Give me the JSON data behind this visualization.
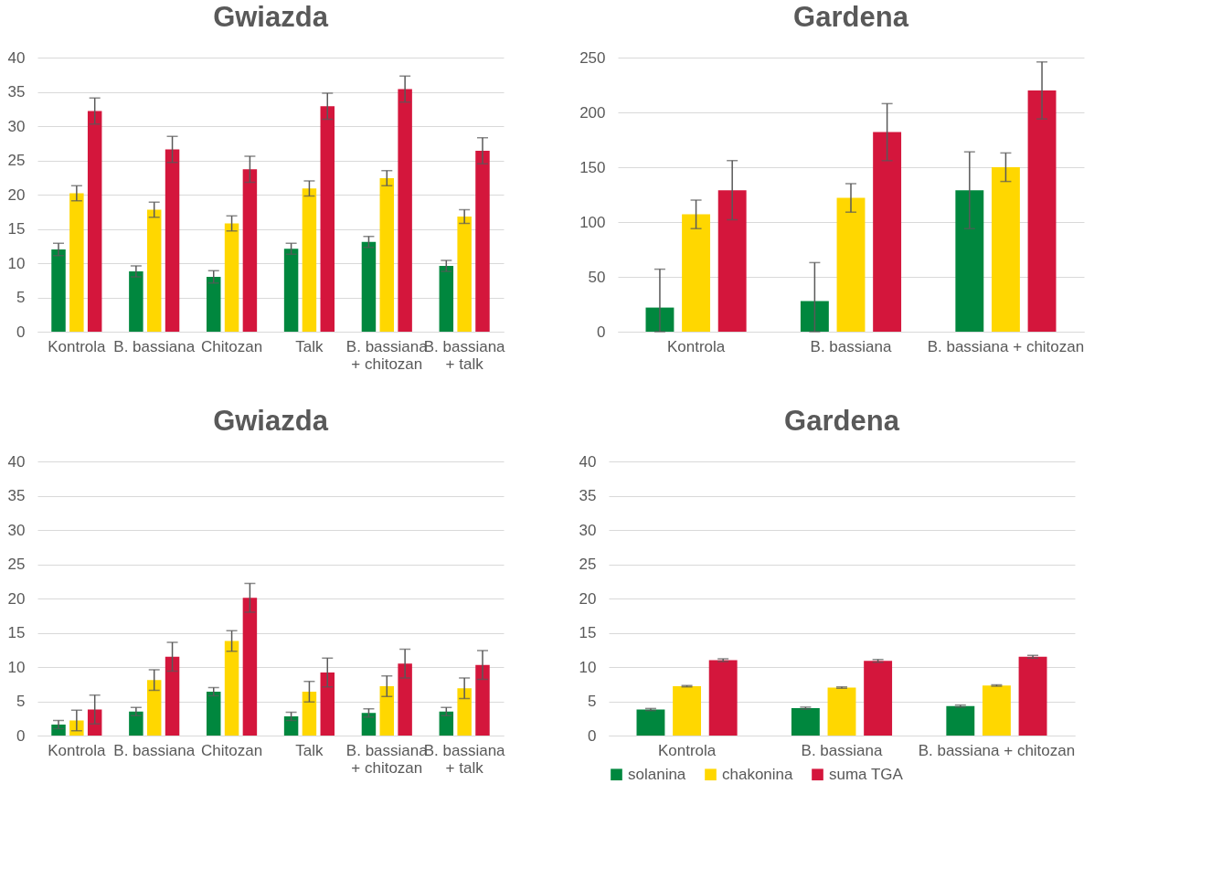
{
  "chart_data": [
    {
      "type": "bar",
      "title": "Gwiazda",
      "categories": [
        "Kontrola",
        "B. bassiana",
        "Chitozan",
        "Talk",
        "B. bassiana\n+ chitozan",
        "B. bassiana\n+ talk"
      ],
      "ylim": [
        0,
        40
      ],
      "yticks": [
        0,
        5,
        10,
        15,
        20,
        25,
        30,
        35,
        40
      ],
      "grid": "y",
      "legend": false,
      "series": [
        {
          "color": "#00873e",
          "values": [
            12.0,
            8.8,
            8.0,
            12.1,
            13.1,
            9.6
          ],
          "errors": [
            0.9,
            0.8,
            0.9,
            0.8,
            0.8,
            0.8
          ]
        },
        {
          "color": "#ffd700",
          "values": [
            20.2,
            17.8,
            15.8,
            20.9,
            22.4,
            16.8
          ],
          "errors": [
            1.1,
            1.1,
            1.1,
            1.1,
            1.1,
            1.0
          ]
        },
        {
          "color": "#d4163c",
          "values": [
            32.2,
            26.6,
            23.7,
            32.9,
            35.4,
            26.4
          ],
          "errors": [
            1.9,
            1.9,
            1.9,
            1.9,
            1.9,
            1.9
          ]
        }
      ]
    },
    {
      "type": "bar",
      "title": "Gardena",
      "categories": [
        "Kontrola",
        "B. bassiana",
        "B. bassiana + chitozan"
      ],
      "ylim": [
        0,
        250
      ],
      "yticks": [
        0,
        50,
        100,
        150,
        200,
        250
      ],
      "grid": "y",
      "legend": false,
      "series": [
        {
          "color": "#00873e",
          "values": [
            22,
            28,
            129
          ],
          "errors": [
            [
              0,
              57
            ],
            [
              0,
              63
            ],
            [
              94,
              164
            ]
          ]
        },
        {
          "color": "#ffd700",
          "values": [
            107,
            122,
            150
          ],
          "errors": [
            13,
            13,
            13
          ]
        },
        {
          "color": "#d4163c",
          "values": [
            129,
            182,
            220
          ],
          "errors": [
            27,
            26,
            26
          ]
        }
      ]
    },
    {
      "type": "bar",
      "title": "Gwiazda",
      "categories": [
        "Kontrola",
        "B. bassiana",
        "Chitozan",
        "Talk",
        "B. bassiana\n+ chitozan",
        "B. bassiana\n+ talk"
      ],
      "ylim": [
        0,
        40
      ],
      "yticks": [
        0,
        5,
        10,
        15,
        20,
        25,
        30,
        35,
        40
      ],
      "grid": "y",
      "legend": false,
      "series": [
        {
          "color": "#00873e",
          "values": [
            1.6,
            3.5,
            6.4,
            2.8,
            3.3,
            3.5
          ],
          "errors": [
            0.6,
            0.6,
            0.6,
            0.6,
            0.6,
            0.6
          ]
        },
        {
          "color": "#ffd700",
          "values": [
            2.2,
            8.1,
            13.8,
            6.4,
            7.2,
            6.9
          ],
          "errors": [
            1.5,
            1.5,
            1.5,
            1.5,
            1.5,
            1.5
          ]
        },
        {
          "color": "#d4163c",
          "values": [
            3.8,
            11.5,
            20.1,
            9.2,
            10.5,
            10.3
          ],
          "errors": [
            2.1,
            2.1,
            2.1,
            2.1,
            2.1,
            2.1
          ]
        }
      ]
    },
    {
      "type": "bar",
      "title": "Gardena",
      "categories": [
        "Kontrola",
        "B. bassiana",
        "B. bassiana + chitozan"
      ],
      "ylim": [
        0,
        40
      ],
      "yticks": [
        0,
        5,
        10,
        15,
        20,
        25,
        30,
        35,
        40
      ],
      "grid": "y",
      "legend": "bottom",
      "series": [
        {
          "name": "solanina",
          "color": "#00873e",
          "values": [
            3.8,
            4.0,
            4.3
          ],
          "errors": [
            0.15,
            0.15,
            0.15
          ]
        },
        {
          "name": "chakonina",
          "color": "#ffd700",
          "values": [
            7.2,
            7.0,
            7.3
          ],
          "errors": [
            0.1,
            0.1,
            0.1
          ]
        },
        {
          "name": "suma TGA",
          "color": "#d4163c",
          "values": [
            11.0,
            10.9,
            11.5
          ],
          "errors": [
            0.2,
            0.2,
            0.2
          ]
        }
      ]
    }
  ]
}
